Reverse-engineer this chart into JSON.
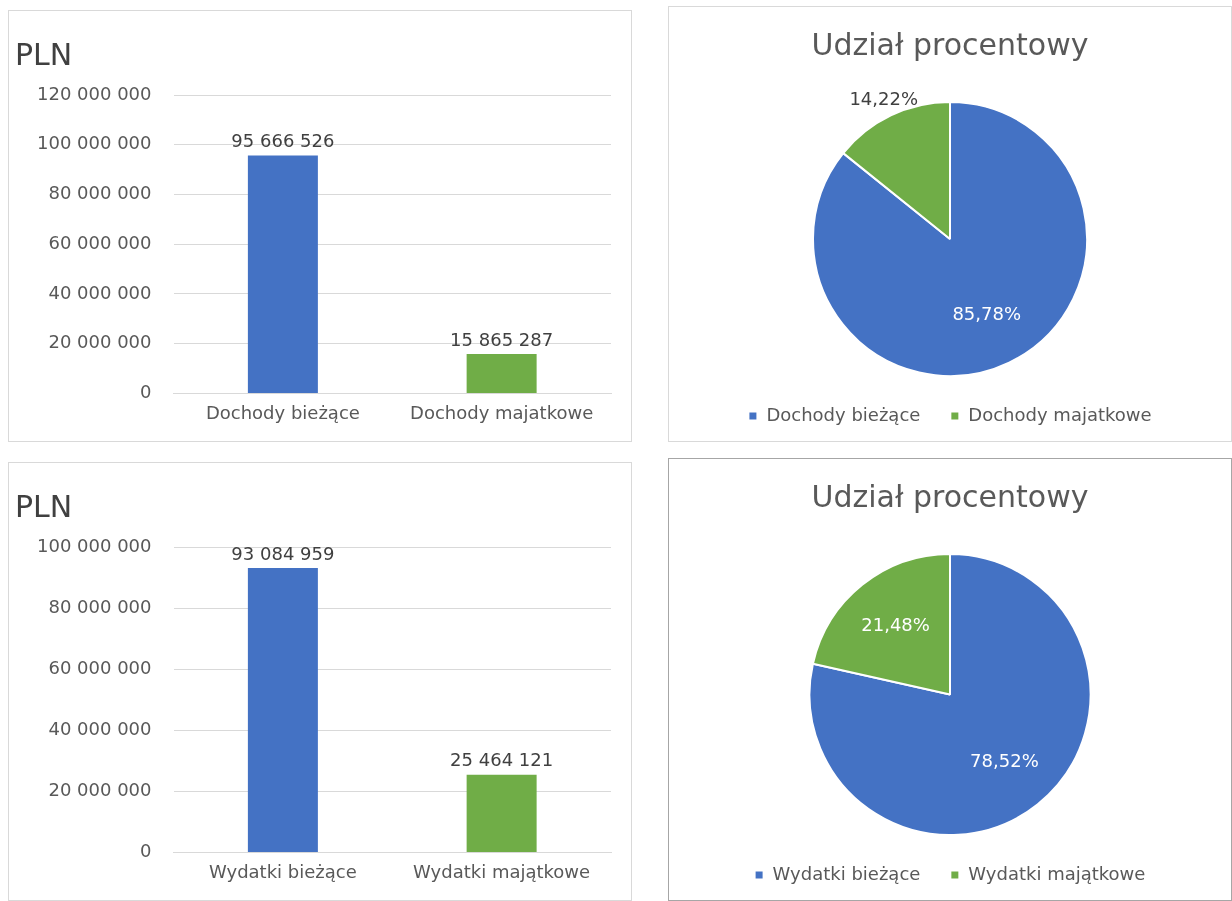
{
  "chart_data": [
    {
      "type": "bar",
      "title": "PLN",
      "categories": [
        "Dochody bieżące",
        "Dochody majatkowe"
      ],
      "values": [
        95666526,
        15865287
      ],
      "colors": [
        "#4472c4",
        "#70ad47"
      ],
      "value_labels": [
        "95 666 526",
        "15 865 287"
      ],
      "ylim": [
        0,
        120000000
      ],
      "yticks": [
        {
          "value": 0,
          "label": "0"
        },
        {
          "value": 20000000,
          "label": "20 000 000"
        },
        {
          "value": 40000000,
          "label": "40 000 000"
        },
        {
          "value": 60000000,
          "label": "60 000 000"
        },
        {
          "value": 80000000,
          "label": "80 000 000"
        },
        {
          "value": 100000000,
          "label": "100 000 000"
        },
        {
          "value": 120000000,
          "label": "120 000 000"
        }
      ],
      "grid": "y"
    },
    {
      "type": "pie",
      "title": "Udział procentowy",
      "categories": [
        "Dochody bieżące",
        "Dochody majatkowe"
      ],
      "values": [
        85.78,
        14.22
      ],
      "colors": [
        "#4472c4",
        "#70ad47"
      ],
      "value_labels": [
        "85,78%",
        "14,22%"
      ],
      "legend": "bottom"
    },
    {
      "type": "bar",
      "title": "PLN",
      "categories": [
        "Wydatki bieżące",
        "Wydatki majątkowe"
      ],
      "values": [
        93084959,
        25464121
      ],
      "colors": [
        "#4472c4",
        "#70ad47"
      ],
      "value_labels": [
        "93 084 959",
        "25 464 121"
      ],
      "ylim": [
        0,
        100000000
      ],
      "yticks": [
        {
          "value": 0,
          "label": "0"
        },
        {
          "value": 20000000,
          "label": "20 000 000"
        },
        {
          "value": 40000000,
          "label": "40 000 000"
        },
        {
          "value": 60000000,
          "label": "60 000 000"
        },
        {
          "value": 80000000,
          "label": "80 000 000"
        },
        {
          "value": 100000000,
          "label": "100 000 000"
        }
      ],
      "grid": "y"
    },
    {
      "type": "pie",
      "title": "Udział procentowy",
      "categories": [
        "Wydatki bieżące",
        "Wydatki majątkowe"
      ],
      "values": [
        78.52,
        21.48
      ],
      "colors": [
        "#4472c4",
        "#70ad47"
      ],
      "value_labels": [
        "78,52%",
        "21,48%"
      ],
      "legend": "bottom"
    }
  ]
}
